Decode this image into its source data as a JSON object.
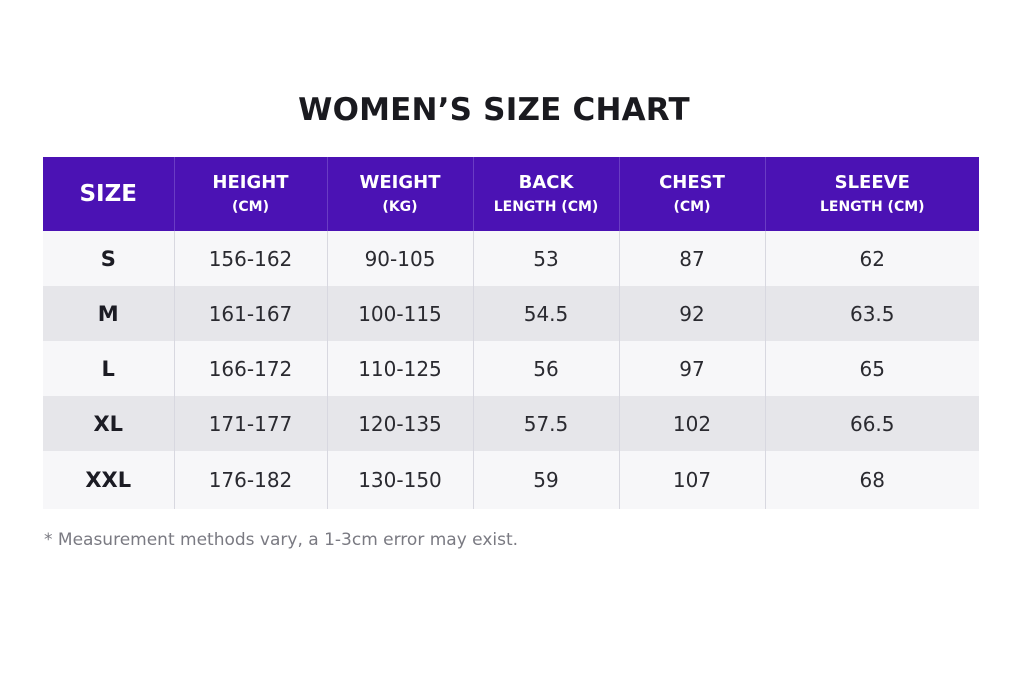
{
  "title": "WOMEN’S SIZE CHART",
  "headers": [
    {
      "main": "SIZE",
      "sub": ""
    },
    {
      "main": "HEIGHT",
      "sub": "(CM)"
    },
    {
      "main": "WEIGHT",
      "sub": "(KG)"
    },
    {
      "main": "BACK",
      "sub": "LENGTH (CM)"
    },
    {
      "main": "CHEST",
      "sub": "(CM)"
    },
    {
      "main": "SLEEVE",
      "sub": "LENGTH (CM)"
    }
  ],
  "rows": [
    [
      "S",
      "156-162",
      "90-105",
      "53",
      "87",
      "62"
    ],
    [
      "M",
      "161-167",
      "100-115",
      "54.5",
      "92",
      "63.5"
    ],
    [
      "L",
      "166-172",
      "110-125",
      "56",
      "97",
      "65"
    ],
    [
      "XL",
      "171-177",
      "120-135",
      "57.5",
      "102",
      "66.5"
    ],
    [
      "XXL",
      "176-182",
      "130-150",
      "59",
      "107",
      "68"
    ]
  ],
  "note": "* Measurement methods vary, a 1-3cm error may exist.",
  "colors": {
    "header_background": "#4b12b4",
    "header_text": "#ffffff",
    "row_light": "#f7f7f9",
    "row_dark": "#e6e6ea",
    "note_text": "#7a7a82"
  }
}
